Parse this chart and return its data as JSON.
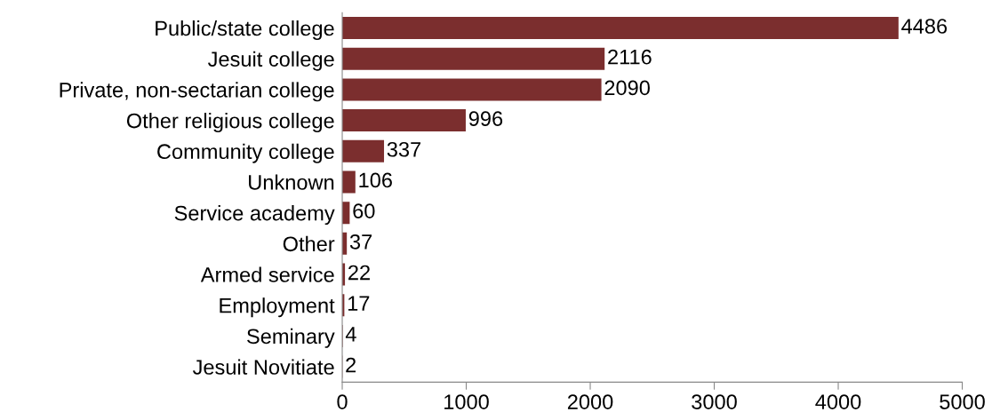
{
  "chart_data": {
    "type": "bar",
    "orientation": "horizontal",
    "categories": [
      "Public/state college",
      "Jesuit college",
      "Private, non-sectarian college",
      "Other religious college",
      "Community college",
      "Unknown",
      "Service academy",
      "Other",
      "Armed service",
      "Employment",
      "Seminary",
      "Jesuit Novitiate"
    ],
    "values": [
      4486,
      2116,
      2090,
      996,
      337,
      106,
      60,
      37,
      22,
      17,
      4,
      2
    ],
    "color": "#7b2e2e",
    "xlim": [
      0,
      5000
    ],
    "xticks": [
      0,
      1000,
      2000,
      3000,
      4000,
      5000
    ],
    "data_labels": true,
    "grid": false,
    "legend": false
  }
}
